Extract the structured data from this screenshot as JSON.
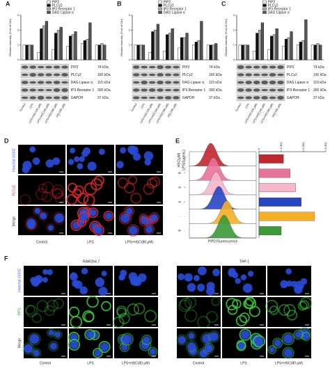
{
  "categories_abc": [
    "Control",
    "LPS",
    "LPS+HSC(20 μM)",
    "LPS+HSC(40 μM)",
    "LPS+HSC(80 μM)",
    "HSC(80 μM)"
  ],
  "panels": [
    {
      "letter": "A",
      "y_label": "Relative intensity (Fold of Ctrl)",
      "ylim": [
        0,
        3
      ],
      "yticks": [
        0,
        1,
        2,
        3
      ],
      "series": [
        {
          "name": "PIP2",
          "color": "#ffffff",
          "values": [
            1,
            0.5,
            0.7,
            0.9,
            1.1,
            1.0
          ]
        },
        {
          "name": "PLCγ2",
          "color": "#111111",
          "values": [
            1,
            2.1,
            1.8,
            1.6,
            1.3,
            1.0
          ]
        },
        {
          "name": "IP3 Receptor 1",
          "color": "#b0b0b0",
          "values": [
            1,
            2.3,
            2.0,
            1.7,
            1.4,
            1.1
          ]
        },
        {
          "name": "DAG Lipase α",
          "color": "#555555",
          "values": [
            1,
            2.6,
            2.2,
            1.9,
            2.5,
            1.0
          ]
        }
      ],
      "blots": [
        {
          "protein": "PIP2",
          "kda": "74 kDa"
        },
        {
          "protein": "PLCγ2",
          "kda": "150 kDa"
        },
        {
          "protein": "DAG Lipase α",
          "kda": "115 kDa"
        },
        {
          "protein": "IP3 Receptor 1",
          "kda": "300 kDa"
        },
        {
          "protein": "GAPDH",
          "kda": "37 kDa"
        }
      ]
    },
    {
      "letter": "B",
      "y_label": "Relative intensity (Fold of Ctrl)",
      "ylim": [
        0,
        3
      ],
      "yticks": [
        0,
        1,
        2,
        3
      ],
      "series": [
        {
          "name": "PIP2",
          "color": "#ffffff",
          "values": [
            1,
            0.5,
            0.6,
            0.8,
            1.0,
            1.0
          ]
        },
        {
          "name": "PLCγ2",
          "color": "#111111",
          "values": [
            1,
            1.9,
            1.7,
            1.5,
            1.2,
            1.0
          ]
        },
        {
          "name": "IP3 Receptor 1",
          "color": "#b0b0b0",
          "values": [
            1,
            2.0,
            1.8,
            1.5,
            1.3,
            1.0
          ]
        },
        {
          "name": "DAG Lipase α",
          "color": "#555555",
          "values": [
            1,
            2.4,
            2.1,
            1.8,
            2.6,
            1.1
          ]
        }
      ],
      "blots": [
        {
          "protein": "PIP2",
          "kda": "74 kDa"
        },
        {
          "protein": "PLCγ2",
          "kda": "150 kDa"
        },
        {
          "protein": "DAG Lipase α",
          "kda": "115 kDa"
        },
        {
          "protein": "IP3 Receptor 1",
          "kda": "300 kDa"
        },
        {
          "protein": "GAPDH",
          "kda": "37 kDa"
        }
      ]
    },
    {
      "letter": "C",
      "y_label": "Relative intensity (Fold of Ctrl)",
      "ylim": [
        0,
        3
      ],
      "yticks": [
        0,
        1,
        2,
        3
      ],
      "series": [
        {
          "name": "PIP2",
          "color": "#ffffff",
          "values": [
            1,
            0.6,
            0.7,
            0.9,
            1.0,
            1.0
          ]
        },
        {
          "name": "PLCγ2",
          "color": "#111111",
          "values": [
            1,
            1.8,
            1.6,
            1.4,
            1.2,
            1.0
          ]
        },
        {
          "name": "IP3 Receptor 1",
          "color": "#b0b0b0",
          "values": [
            1,
            2.0,
            1.7,
            1.5,
            1.3,
            1.1
          ]
        },
        {
          "name": "DAG Lipase α",
          "color": "#555555",
          "values": [
            1,
            2.5,
            2.1,
            1.9,
            2.7,
            1.0
          ]
        }
      ],
      "blots": [
        {
          "protein": "PIP2",
          "kda": "74 kDa"
        },
        {
          "protein": "PLCγ2",
          "kda": "150 kDa"
        },
        {
          "protein": "DAG Lipase α",
          "kda": "115 kDa"
        },
        {
          "protein": "IP3 Receptor 1",
          "kda": "300 kDa"
        },
        {
          "protein": "GAPDH",
          "kda": "37 kDa"
        }
      ]
    }
  ],
  "panel_d": {
    "letter": "D",
    "rows": [
      "Hoechst 33342",
      "PLCγ2",
      "Merge"
    ],
    "columns": [
      "Control",
      "LPS",
      "LPS+HSC(80 μM)"
    ]
  },
  "panel_e": {
    "letter": "E",
    "row_header": [
      "HSC(μM)",
      "LPS(1μg/mL)"
    ],
    "x_label": "PIP2 Fluorescence",
    "xlim": [
      0,
      30000
    ],
    "xticks": [
      0,
      {
        "value": 10000,
        "label": "1.0E4"
      },
      {
        "value": 20000,
        "label": "2.0E4"
      },
      {
        "value": 30000,
        "label": "3.0E4"
      }
    ],
    "rows": [
      {
        "hsc": "-",
        "lps": "+",
        "color": "#c0282e",
        "value": 11000
      },
      {
        "hsc": "80",
        "lps": "+",
        "color": "#e8739a",
        "value": 14000
      },
      {
        "hsc": "40",
        "lps": "+",
        "color": "#f5b8cc",
        "value": 16500
      },
      {
        "hsc": "20",
        "lps": "+",
        "color": "#2846c4",
        "value": 19000
      },
      {
        "hsc": "-",
        "lps": "-",
        "color": "#f4b024",
        "value": 25000
      },
      {
        "hsc": "80",
        "lps": "-",
        "color": "#3d9a3a",
        "value": 10000
      }
    ]
  },
  "panel_f": {
    "letter": "F",
    "rows": [
      "Hoechst 33342",
      "PIP2",
      "Merge"
    ],
    "groups": [
      {
        "name": "RAW264.7",
        "columns": [
          "Control",
          "LPS",
          "LPS+HSC(80 μM)"
        ]
      },
      {
        "name": "THP-1",
        "columns": [
          "Control",
          "LPS",
          "LPS+HSC(80 μM)"
        ]
      }
    ]
  }
}
